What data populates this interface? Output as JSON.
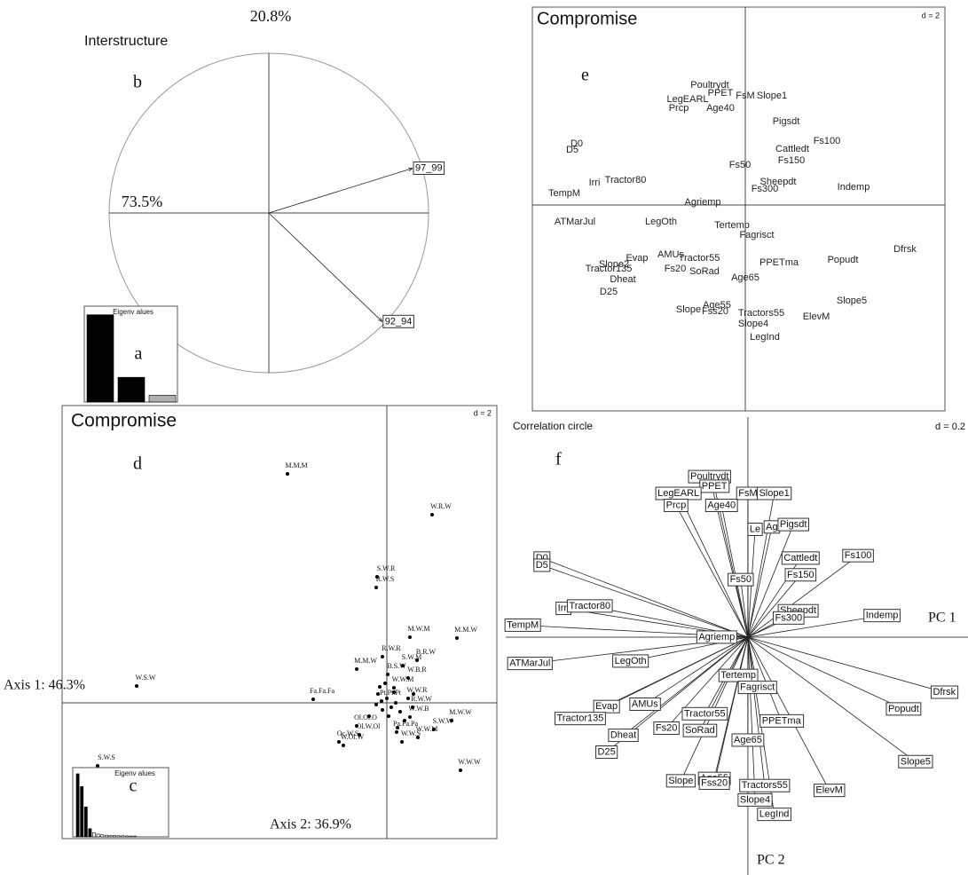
{
  "chart_data": [
    {
      "type": "bar",
      "title": "Eigenv alues",
      "annotation": "a",
      "values": [
        73.5,
        20.8,
        5.7
      ],
      "colors": [
        "#000000",
        "#000000",
        "#b0b0b0"
      ],
      "ylim": [
        0,
        80
      ]
    },
    {
      "type": "arrow",
      "title": "Interstructure",
      "annotation": "b",
      "top_label": "20.8%",
      "left_label": "73.5%",
      "labels": [
        "97_99",
        "92_94"
      ],
      "x": [
        0.9,
        0.71
      ],
      "y": [
        0.28,
        -0.68
      ],
      "xlim": [
        -1,
        1
      ],
      "ylim": [
        -1,
        1
      ],
      "circle": true
    },
    {
      "type": "scatter",
      "title": "Compromise",
      "annotation": "d",
      "scale_label": "d = 2",
      "xlabel": "Axis 1: 46.3%",
      "ylabel": "Axis 2: 36.9%",
      "labels": [
        "M.M.M",
        "W.R.W",
        "S.W.R",
        "R.W.S",
        "M.W.M",
        "M.M.W",
        "R.W.R",
        "B.R.W",
        "M.M.W",
        "S.W.M",
        "B.S.W",
        "W.B.R",
        "W.W.M",
        "W.S.W",
        "Fa.Fa.Fa",
        "Pt.Pt.Pt",
        "W.W.R",
        "R.W.W",
        "W.W.B",
        "M.W.W",
        "Ol.Ol.O",
        "Ol.W.Ol",
        "S.W.W",
        "Pa.Pa.Pa",
        "W.W.M",
        "W.W.S",
        "Oc.W.S",
        "W.Ol.W",
        "W.W.W",
        "S.W.S",
        null,
        null,
        null,
        null,
        null,
        null,
        null,
        null,
        null,
        null,
        null,
        null,
        null,
        null,
        null
      ],
      "x": [
        -1.12,
        0.51,
        -0.11,
        -0.12,
        0.26,
        0.79,
        -0.05,
        0.34,
        -0.34,
        0.18,
        0.01,
        0.24,
        0.08,
        -2.82,
        -0.83,
        -0.06,
        0.24,
        0.29,
        0.26,
        0.73,
        -0.34,
        -0.31,
        0.53,
        0.11,
        0.35,
        0.17,
        -0.54,
        -0.49,
        0.83,
        -3.26,
        -0.1,
        0,
        0.05,
        -0.05,
        0.1,
        0.15,
        -0.12,
        0.02,
        0.08,
        -0.08,
        0.2,
        -0.02,
        0.12,
        -0.2,
        0.3
      ],
      "y": [
        2.58,
        2.12,
        1.42,
        1.3,
        0.74,
        0.73,
        0.52,
        0.48,
        0.38,
        0.42,
        0.32,
        0.28,
        0.17,
        0.19,
        0.04,
        0.02,
        0.05,
        -0.05,
        -0.16,
        -0.2,
        -0.26,
        -0.36,
        -0.3,
        -0.33,
        -0.39,
        -0.44,
        -0.44,
        -0.48,
        -0.76,
        -0.71,
        0.1,
        0.05,
        -0.05,
        -0.08,
        0,
        -0.1,
        -0.02,
        -0.15,
        0.12,
        0.18,
        -0.2,
        0.22,
        -0.28,
        -0.15,
        0.1
      ],
      "xlim": [
        -3.66,
        1.24
      ],
      "ylim": [
        -1.53,
        3.35
      ],
      "markers": true
    },
    {
      "type": "bar",
      "title": "Eigenv alues",
      "annotation": "c",
      "values": [
        46.3,
        36.9,
        22,
        6,
        3,
        2,
        1.5,
        1.2,
        1,
        1,
        0.8,
        0.8,
        0.7,
        0.6,
        0.6
      ],
      "colors": [
        "#000000",
        "#000000",
        "#000000",
        "#000000",
        "#ffffff",
        "#ffffff",
        "#ffffff",
        "#ffffff",
        "#ffffff",
        "#ffffff",
        "#ffffff",
        "#ffffff",
        "#ffffff",
        "#ffffff",
        "#ffffff"
      ],
      "ylim": [
        0,
        50
      ]
    },
    {
      "type": "scatter",
      "title": "Compromise",
      "annotation": "e",
      "scale_label": "d = 2",
      "labels": [
        "Poultrydt",
        "PPET",
        "FsM",
        "Slope1",
        "LegEARL",
        "Prcp",
        "Age40",
        "Pigsdt",
        "D0",
        "D5",
        "Fs100",
        "Cattledt",
        "Fs150",
        "Fs50",
        "Irri",
        "Tractor80",
        "Sheepdt",
        "Fs300",
        "Indemp",
        "TempM",
        "Agriemp",
        "ATMarJul",
        "LegOth",
        "Tertemp",
        "Fagrisct",
        "Evap",
        "AMUs",
        "Tractor55",
        "Slope2",
        "Tractor135",
        "Fs20",
        "SoRad",
        "Dfrsk",
        "Popudt",
        "PPETma",
        "Dheat",
        "Age65",
        "D25",
        "Slope5",
        "Age55",
        "Slope",
        "Fss20",
        "Tractors55",
        "ElevM",
        "Slope4",
        "LegInd"
      ],
      "x": [
        -0.4,
        -0.28,
        0,
        0.3,
        -0.65,
        -0.75,
        -0.28,
        0.46,
        -1.9,
        -1.95,
        0.92,
        0.53,
        0.52,
        -0.06,
        -1.7,
        -1.35,
        0.37,
        0.22,
        1.22,
        -2.04,
        -0.48,
        -1.92,
        -0.95,
        -0.15,
        0.13,
        -1.22,
        -0.84,
        -0.52,
        -1.48,
        -1.54,
        -0.79,
        -0.46,
        1.8,
        1.1,
        0.38,
        -1.38,
        0,
        -1.54,
        1.2,
        -0.32,
        -0.64,
        -0.34,
        0.18,
        0.8,
        0.09,
        0.22
      ],
      "y": [
        1.35,
        1.26,
        1.23,
        1.23,
        1.19,
        1.09,
        1.09,
        0.94,
        0.69,
        0.62,
        0.72,
        0.63,
        0.5,
        0.45,
        0.25,
        0.28,
        0.26,
        0.18,
        0.2,
        0.13,
        0.03,
        -0.19,
        -0.19,
        -0.23,
        -0.34,
        -0.6,
        -0.56,
        -0.6,
        -0.67,
        -0.72,
        -0.72,
        -0.75,
        -0.5,
        -0.62,
        -0.65,
        -0.84,
        -0.82,
        -0.98,
        -1.08,
        -1.13,
        -1.18,
        -1.2,
        -1.22,
        -1.26,
        -1.34,
        -1.49
      ],
      "xlim": [
        -2.4,
        2.25
      ],
      "ylim": [
        -2.32,
        2.23
      ],
      "markers": false
    },
    {
      "type": "arrow",
      "title": "Correlation circle",
      "annotation": "f",
      "scale_label": "d = 0.2",
      "xlabel": "PC 1",
      "ylabel": "PC 2",
      "labels": [
        "Poultrydt",
        "PPET",
        "FsM",
        "Slope1",
        "LegEARL",
        "Prcp",
        "Age40",
        "Le",
        "Ag",
        "Pigsdt",
        "Fs100",
        "Cattledt",
        "Fs150",
        "D0",
        "D5",
        "Fs50",
        "Irri",
        "Tractor80",
        "Sheepdt",
        "Fs300",
        "Indemp",
        "TempM",
        "Agriemp",
        "ATMarJul",
        "LegOth",
        "Tertemp",
        "Fagrisct",
        "Evap",
        "AMUs",
        "Tractor55",
        "Tractor135",
        "Fs20",
        "SoRad",
        "Dfrsk",
        "Popudt",
        "PPETma",
        "Dheat",
        "Age65",
        "D25",
        "Slope5",
        "Slope",
        "Age55",
        "Fss20",
        "Tractors55",
        "ElevM",
        "Slope4",
        "LegInd"
      ],
      "x": [
        -0.16,
        -0.14,
        0,
        0.11,
        -0.29,
        -0.3,
        -0.11,
        0.03,
        0.1,
        0.19,
        0.46,
        0.22,
        0.22,
        -0.86,
        -0.86,
        -0.03,
        -0.77,
        -0.66,
        0.21,
        0.17,
        0.56,
        -0.94,
        -0.13,
        -0.91,
        -0.49,
        -0.04,
        0.04,
        -0.59,
        -0.43,
        -0.18,
        -0.7,
        -0.34,
        -0.2,
        0.82,
        0.65,
        0.14,
        -0.52,
        0,
        -0.59,
        0.7,
        -0.28,
        -0.14,
        -0.14,
        0.07,
        0.34,
        0.03,
        0.11
      ],
      "y": [
        0.67,
        0.63,
        0.6,
        0.6,
        0.6,
        0.55,
        0.55,
        0.45,
        0.46,
        0.47,
        0.34,
        0.33,
        0.26,
        0.33,
        0.3,
        0.24,
        0.12,
        0.13,
        0.11,
        0.08,
        0.09,
        0.05,
        0,
        -0.11,
        -0.1,
        -0.16,
        -0.21,
        -0.29,
        -0.28,
        -0.32,
        -0.34,
        -0.38,
        -0.39,
        -0.23,
        -0.3,
        -0.35,
        -0.41,
        -0.43,
        -0.48,
        -0.52,
        -0.6,
        -0.59,
        -0.61,
        -0.62,
        -0.64,
        -0.68,
        -0.74
      ],
      "xlim": [
        -1.011,
        0.919
      ],
      "ylim": [
        -0.993,
        0.919
      ],
      "circle": false
    }
  ]
}
